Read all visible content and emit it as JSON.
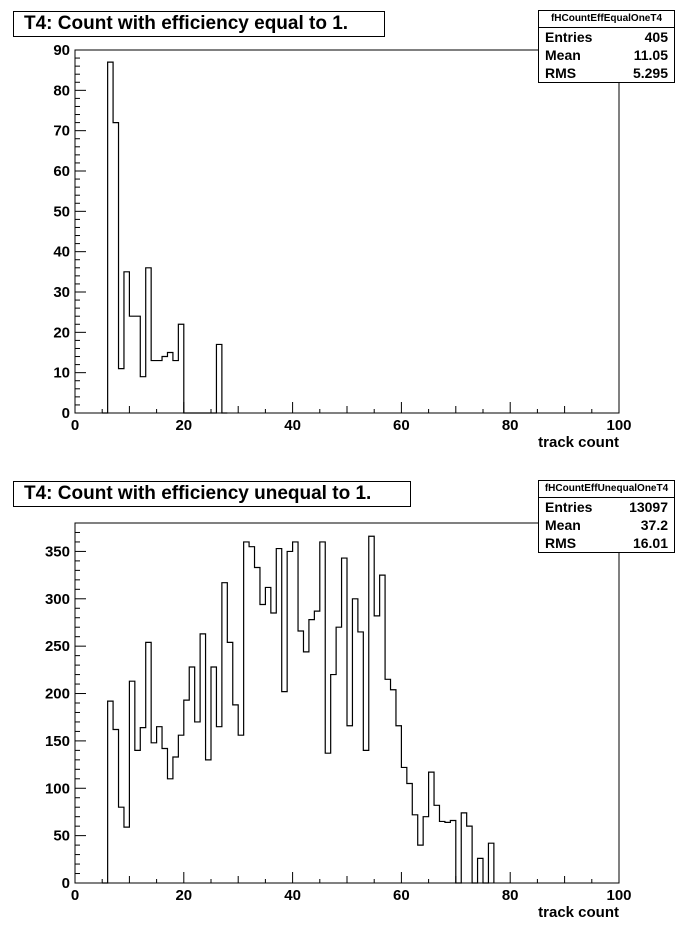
{
  "panels": [
    {
      "title": "T4: Count with efficiency equal to 1.",
      "stats": {
        "name": "fHCountEffEqualOneT4",
        "rows": [
          {
            "label": "Entries",
            "value": "405"
          },
          {
            "label": "Mean",
            "value": "11.05"
          },
          {
            "label": "RMS",
            "value": "5.295"
          }
        ]
      }
    },
    {
      "title": "T4: Count with efficiency unequal to 1.",
      "stats": {
        "name": "fHCountEffUnequalOneT4",
        "rows": [
          {
            "label": "Entries",
            "value": "13097"
          },
          {
            "label": "Mean",
            "value": "37.2"
          },
          {
            "label": "RMS",
            "value": "16.01"
          }
        ]
      }
    }
  ],
  "chart_data": [
    {
      "type": "histogram",
      "title": "T4: Count with efficiency equal to 1.",
      "xlabel": "track count",
      "ylabel": "",
      "xlim": [
        0,
        100
      ],
      "ylim": [
        0,
        90
      ],
      "xticks": [
        0,
        20,
        40,
        60,
        80,
        100
      ],
      "yticks": [
        0,
        10,
        20,
        30,
        40,
        50,
        60,
        70,
        80,
        90
      ],
      "bin_edges": [
        5,
        6,
        7,
        8,
        9,
        10,
        11,
        12,
        13,
        14,
        15,
        16,
        17,
        18,
        19,
        20,
        26,
        27,
        28
      ],
      "values": [
        0,
        87,
        72,
        11,
        35,
        24,
        24,
        9,
        36,
        13,
        13,
        14,
        15,
        13,
        22,
        0,
        17,
        0
      ],
      "grid": false,
      "legend": "stats box top-right"
    },
    {
      "type": "histogram",
      "title": "T4: Count with efficiency unequal to 1.",
      "xlabel": "track count",
      "ylabel": "",
      "xlim": [
        0,
        100
      ],
      "ylim": [
        0,
        380
      ],
      "xticks": [
        0,
        20,
        40,
        60,
        80,
        100
      ],
      "yticks": [
        0,
        50,
        100,
        150,
        200,
        250,
        300,
        350
      ],
      "bin_edges": [
        5,
        6,
        7,
        8,
        9,
        10,
        11,
        12,
        13,
        14,
        15,
        16,
        17,
        18,
        19,
        20,
        21,
        22,
        23,
        24,
        25,
        26,
        27,
        28,
        29,
        30,
        31,
        32,
        33,
        34,
        35,
        36,
        37,
        38,
        39,
        40,
        41,
        42,
        43,
        44,
        45,
        46,
        47,
        48,
        49,
        50,
        51,
        52,
        53,
        54,
        55,
        56,
        57,
        58,
        59,
        60,
        61,
        62,
        63,
        64,
        65,
        66,
        67,
        68,
        69,
        70,
        71,
        72,
        73,
        74,
        75,
        76,
        77
      ],
      "values": [
        0,
        192,
        162,
        80,
        59,
        213,
        140,
        164,
        254,
        148,
        165,
        142,
        110,
        133,
        156,
        193,
        228,
        170,
        263,
        130,
        228,
        165,
        317,
        254,
        188,
        156,
        360,
        355,
        333,
        294,
        312,
        285,
        353,
        202,
        350,
        360,
        266,
        244,
        278,
        287,
        360,
        137,
        220,
        270,
        343,
        166,
        300,
        265,
        140,
        366,
        282,
        325,
        215,
        204,
        166,
        122,
        105,
        72,
        40,
        70,
        117,
        82,
        65,
        64,
        66,
        0,
        74,
        60,
        0,
        26,
        0,
        42
      ]
    }
  ]
}
